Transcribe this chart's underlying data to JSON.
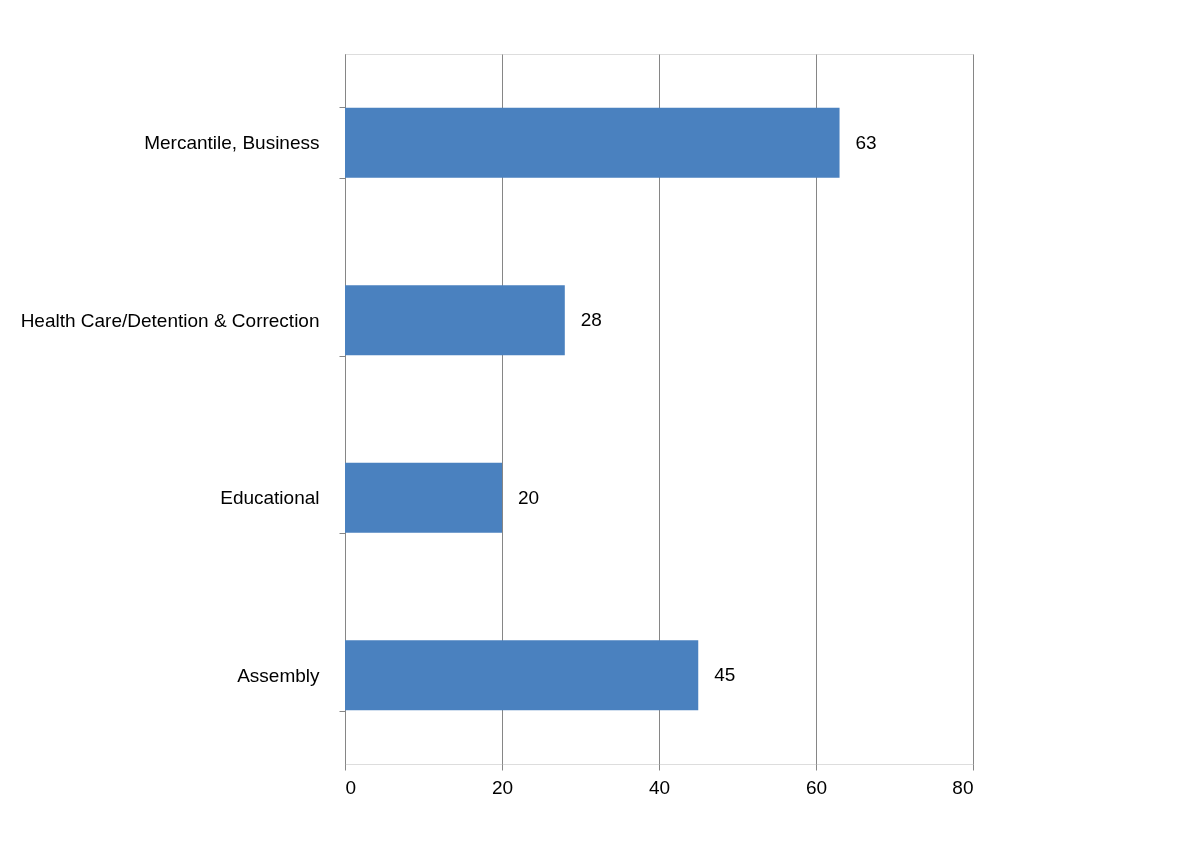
{
  "chart_data": {
    "type": "bar",
    "orientation": "horizontal",
    "categories": [
      "Mercantile, Business",
      "Health Care/Detention & Correction",
      "Educational",
      "Assembly"
    ],
    "values": [
      63,
      28,
      20,
      45
    ],
    "color": "#4a81bf",
    "xlim": [
      0,
      80
    ],
    "xticks": [
      0,
      20,
      40,
      60,
      80
    ],
    "grid": "x",
    "data_labels": true
  }
}
